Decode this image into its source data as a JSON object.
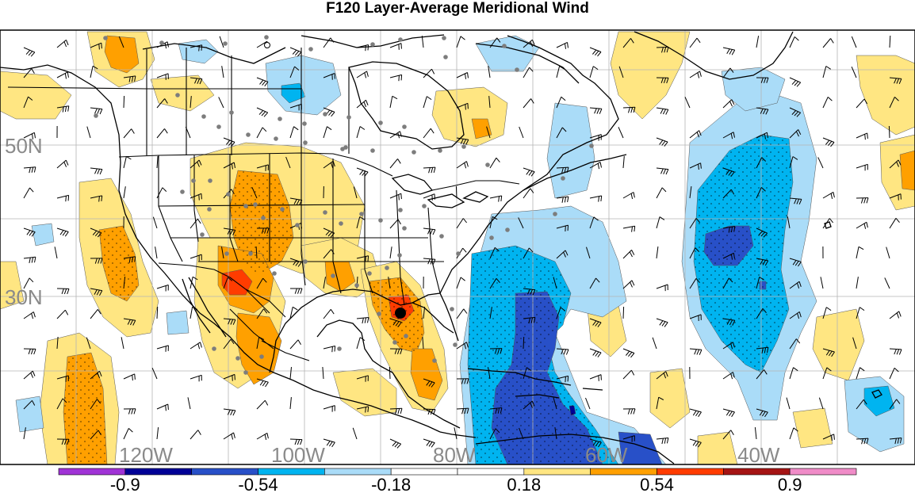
{
  "title": "F120 Layer-Average Meridional Wind",
  "lat_labels": [
    "50N",
    "30N"
  ],
  "lon_labels": [
    "120W",
    "100W",
    "80W",
    "60W",
    "40W"
  ],
  "colorbar": {
    "colors": [
      "#a033d6",
      "#000096",
      "#2850c8",
      "#00b4f0",
      "#aadcf8",
      "#ffffff",
      "#ffffff",
      "#ffe682",
      "#ffa000",
      "#ff3c00",
      "#a51414",
      "#f08cc8"
    ],
    "tick_labels": [
      "-0.9",
      "-0.54",
      "-0.18",
      "0.18",
      "0.54",
      "0.9"
    ]
  },
  "fill_colors": {
    "light_blue": "#aadcf8",
    "blue": "#00b4f0",
    "dark_blue": "#2850c8",
    "navy": "#000096",
    "yellow": "#ffe682",
    "orange": "#ffa000",
    "red": "#ff3c00"
  }
}
